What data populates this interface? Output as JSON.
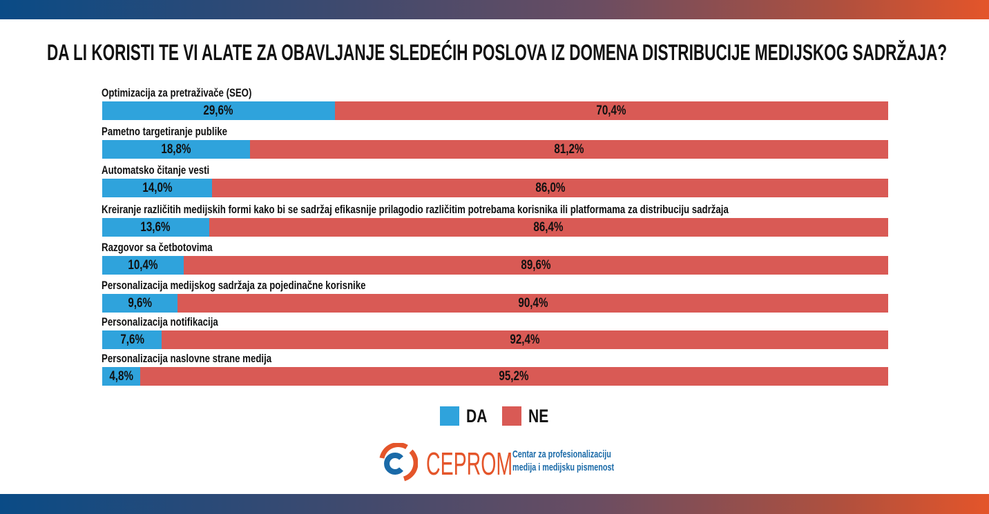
{
  "colors": {
    "da": "#2fa3dc",
    "ne": "#d95a55",
    "brand_orange": "#e4552a",
    "brand_blue": "#1a6aa8"
  },
  "chart_data": {
    "type": "bar",
    "orientation": "horizontal",
    "stacked": true,
    "normalized": true,
    "title": "DA LI KORISTI TE VI ALATE ZA OBAVLJANJE SLEDEĆIH POSLOVA IZ DOMENA DISTRIBUCIJE MEDIJSKOG SADRŽAJA?",
    "categories": [
      "Optimizacija za pretraživače (SEO)",
      "Pametno targetiranje publike",
      "Automatsko čitanje vesti",
      "Kreiranje različitih medijskih formi kako bi se sadržaj efikasnije prilagodio različitim potrebama korisnika ili platformama za distribuciju sadržaja",
      "Razgovor sa četbotovima",
      "Personalizacija medijskog sadržaja za pojedinačne korisnike",
      "Personalizacija notifikacija",
      "Personalizacija naslovne strane medija"
    ],
    "series": [
      {
        "name": "DA",
        "values": [
          29.6,
          18.8,
          14.0,
          13.6,
          10.4,
          9.6,
          7.6,
          4.8
        ],
        "labels": [
          "29,6%",
          "18,8%",
          "14,0%",
          "13,6%",
          "10,4%",
          "9,6%",
          "7,6%",
          "4,8%"
        ]
      },
      {
        "name": "NE",
        "values": [
          70.4,
          81.2,
          86.0,
          86.4,
          89.6,
          90.4,
          92.4,
          95.2
        ],
        "labels": [
          "70,4%",
          "81,2%",
          "86,0%",
          "86,4%",
          "89,6%",
          "90,4%",
          "92,4%",
          "95,2%"
        ]
      }
    ],
    "xlim": [
      0,
      100
    ],
    "grid": false,
    "legend_position": "bottom"
  },
  "footer": {
    "brand": "CEPROM",
    "tagline_1": "Centar za profesionalizaciju",
    "tagline_2": "medija i medijsku pismenost"
  }
}
